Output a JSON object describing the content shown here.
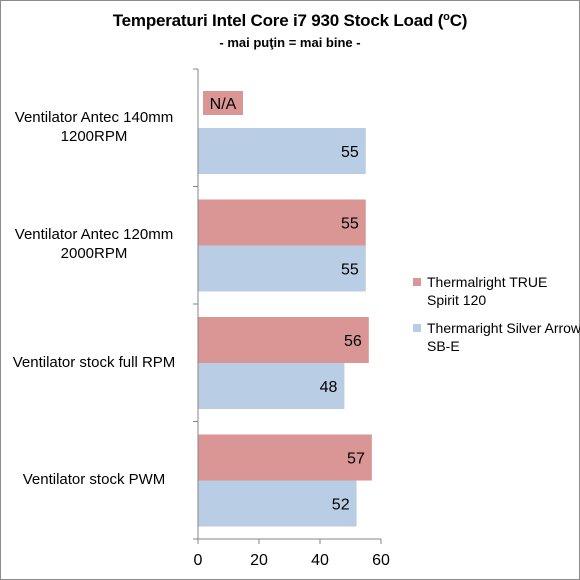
{
  "chart_data": {
    "type": "bar",
    "orientation": "horizontal",
    "title_main": "Temperaturi Intel Core i7 930 Stock Load (",
    "title_sup": "o",
    "title_end": "C)",
    "subtitle": "- mai puţin = mai bine -",
    "categories": [
      "Ventilator Antec 140mm 1200RPM",
      "Ventilator Antec 120mm 2000RPM",
      "Ventilator stock full RPM",
      "Ventilator stock PWM"
    ],
    "series": [
      {
        "name": "Thermalright TRUE Spirit 120",
        "color": "#d99694",
        "values": [
          null,
          55,
          56,
          57
        ],
        "data_labels": [
          "N/A",
          "55",
          "56",
          "57"
        ]
      },
      {
        "name": "Thermaright Silver Arrow SB-E",
        "color": "#b9cde5",
        "values": [
          55,
          55,
          48,
          52
        ],
        "data_labels": [
          "55",
          "55",
          "48",
          "52"
        ]
      }
    ],
    "xlim": [
      0,
      60
    ],
    "xticks": [
      "0",
      "20",
      "40",
      "60"
    ],
    "legend_position": "right",
    "grid": false
  }
}
